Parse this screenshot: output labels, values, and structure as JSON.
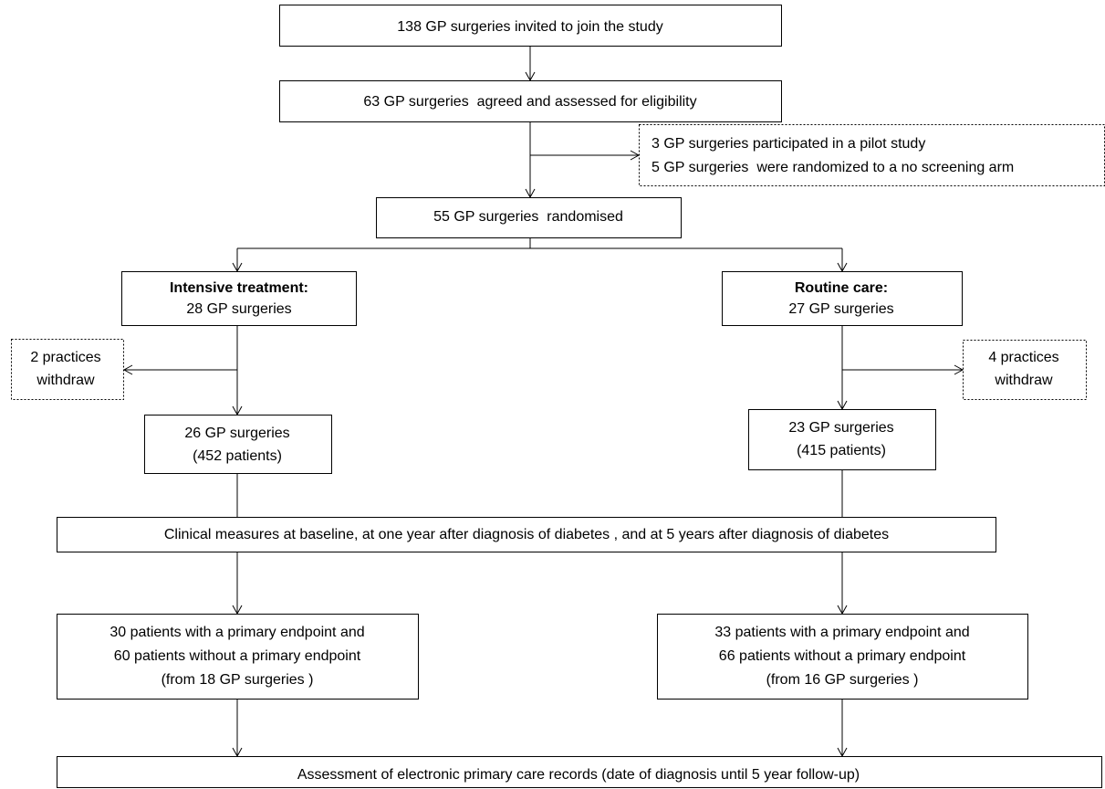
{
  "nodes": [
    {
      "lines": [
        "138 GP surgeries invited to join the study"
      ]
    },
    {
      "lines": [
        "63 GP surgeries  agreed and assessed for eligibility"
      ]
    },
    {
      "lines": [
        "3 GP surgeries participated in a pilot study",
        "5 GP surgeries  were randomized to a no screening arm"
      ]
    },
    {
      "lines": [
        "55 GP surgeries  randomised"
      ]
    },
    {
      "lines": [
        "Intensive treatment:",
        "28 GP surgeries"
      ]
    },
    {
      "lines": [
        "Routine care:",
        "27 GP surgeries"
      ]
    },
    {
      "lines": [
        "2 practices",
        "withdraw"
      ]
    },
    {
      "lines": [
        "4 practices",
        "withdraw"
      ]
    },
    {
      "lines": [
        "26 GP surgeries",
        "(452 patients)"
      ]
    },
    {
      "lines": [
        "23 GP surgeries",
        "(415 patients)"
      ]
    },
    {
      "lines": [
        "Clinical measures at baseline, at one year after diagnosis of diabetes , and at 5 years after diagnosis of diabetes"
      ]
    },
    {
      "lines": [
        "30 patients with a primary endpoint and",
        "60 patients without a primary endpoint",
        "(from 18 GP surgeries )"
      ]
    },
    {
      "lines": [
        "33 patients with a primary endpoint and",
        "66 patients without a primary endpoint",
        "(from 16 GP surgeries )"
      ]
    },
    {
      "lines": [
        "Assessment of electronic primary care records (date of diagnosis until 5 year follow-up)"
      ]
    }
  ]
}
